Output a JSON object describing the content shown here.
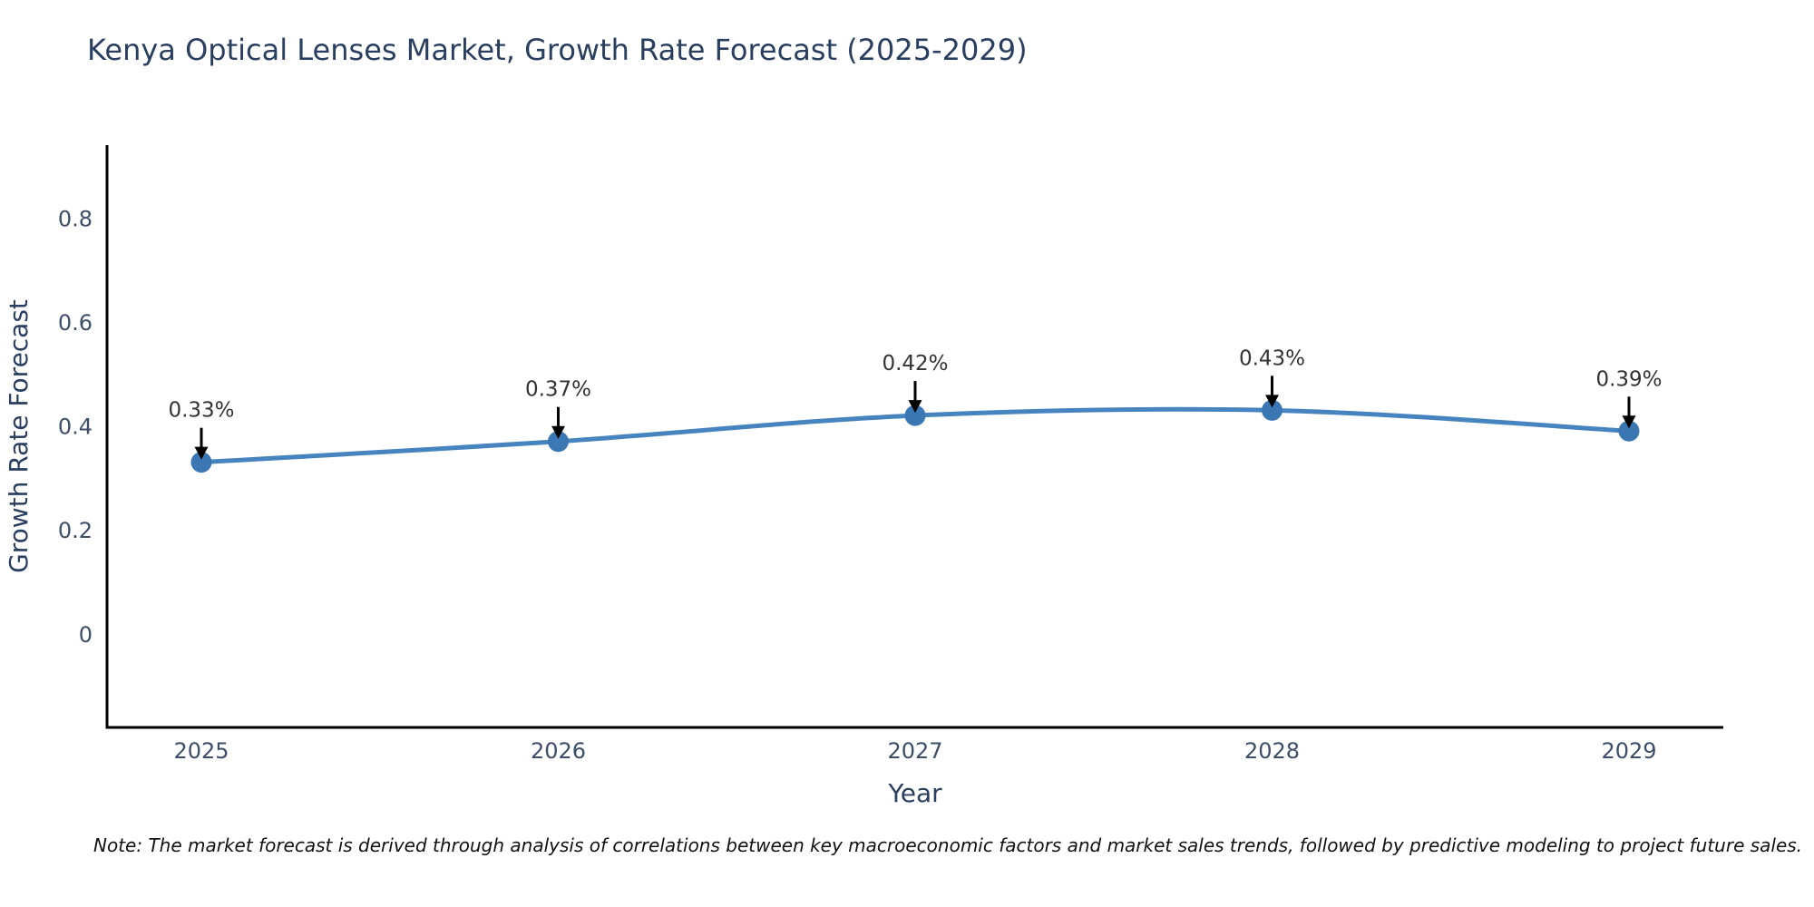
{
  "chart_data": {
    "type": "line",
    "title": "Kenya Optical Lenses Market, Growth Rate Forecast (2025-2029)",
    "xlabel": "Year",
    "ylabel": "Growth Rate Forecast",
    "categories": [
      "2025",
      "2026",
      "2027",
      "2028",
      "2029"
    ],
    "series": [
      {
        "name": "Growth Rate Forecast",
        "values": [
          0.33,
          0.37,
          0.42,
          0.43,
          0.39
        ],
        "point_labels": [
          "0.33%",
          "0.37%",
          "0.42%",
          "0.43%",
          "0.39%"
        ]
      }
    ],
    "yticks": [
      0,
      0.2,
      0.4,
      0.6,
      0.8
    ],
    "ylim": [
      -0.18,
      0.94
    ],
    "grid": false,
    "legend": "none",
    "line_shape": "spline",
    "annotations": "black arrows pointing down from each value label to its marker",
    "colors": {
      "line": "#4684bf",
      "marker": "#3a77b3",
      "axis": "#000000",
      "title_text": "#2a3f5f",
      "tick_text": "#3d4e68",
      "annotation_text": "#333333"
    }
  },
  "note": "Note: The market forecast is derived through analysis of correlations between key macroeconomic factors and market sales trends, followed by predictive modeling to project future sales."
}
